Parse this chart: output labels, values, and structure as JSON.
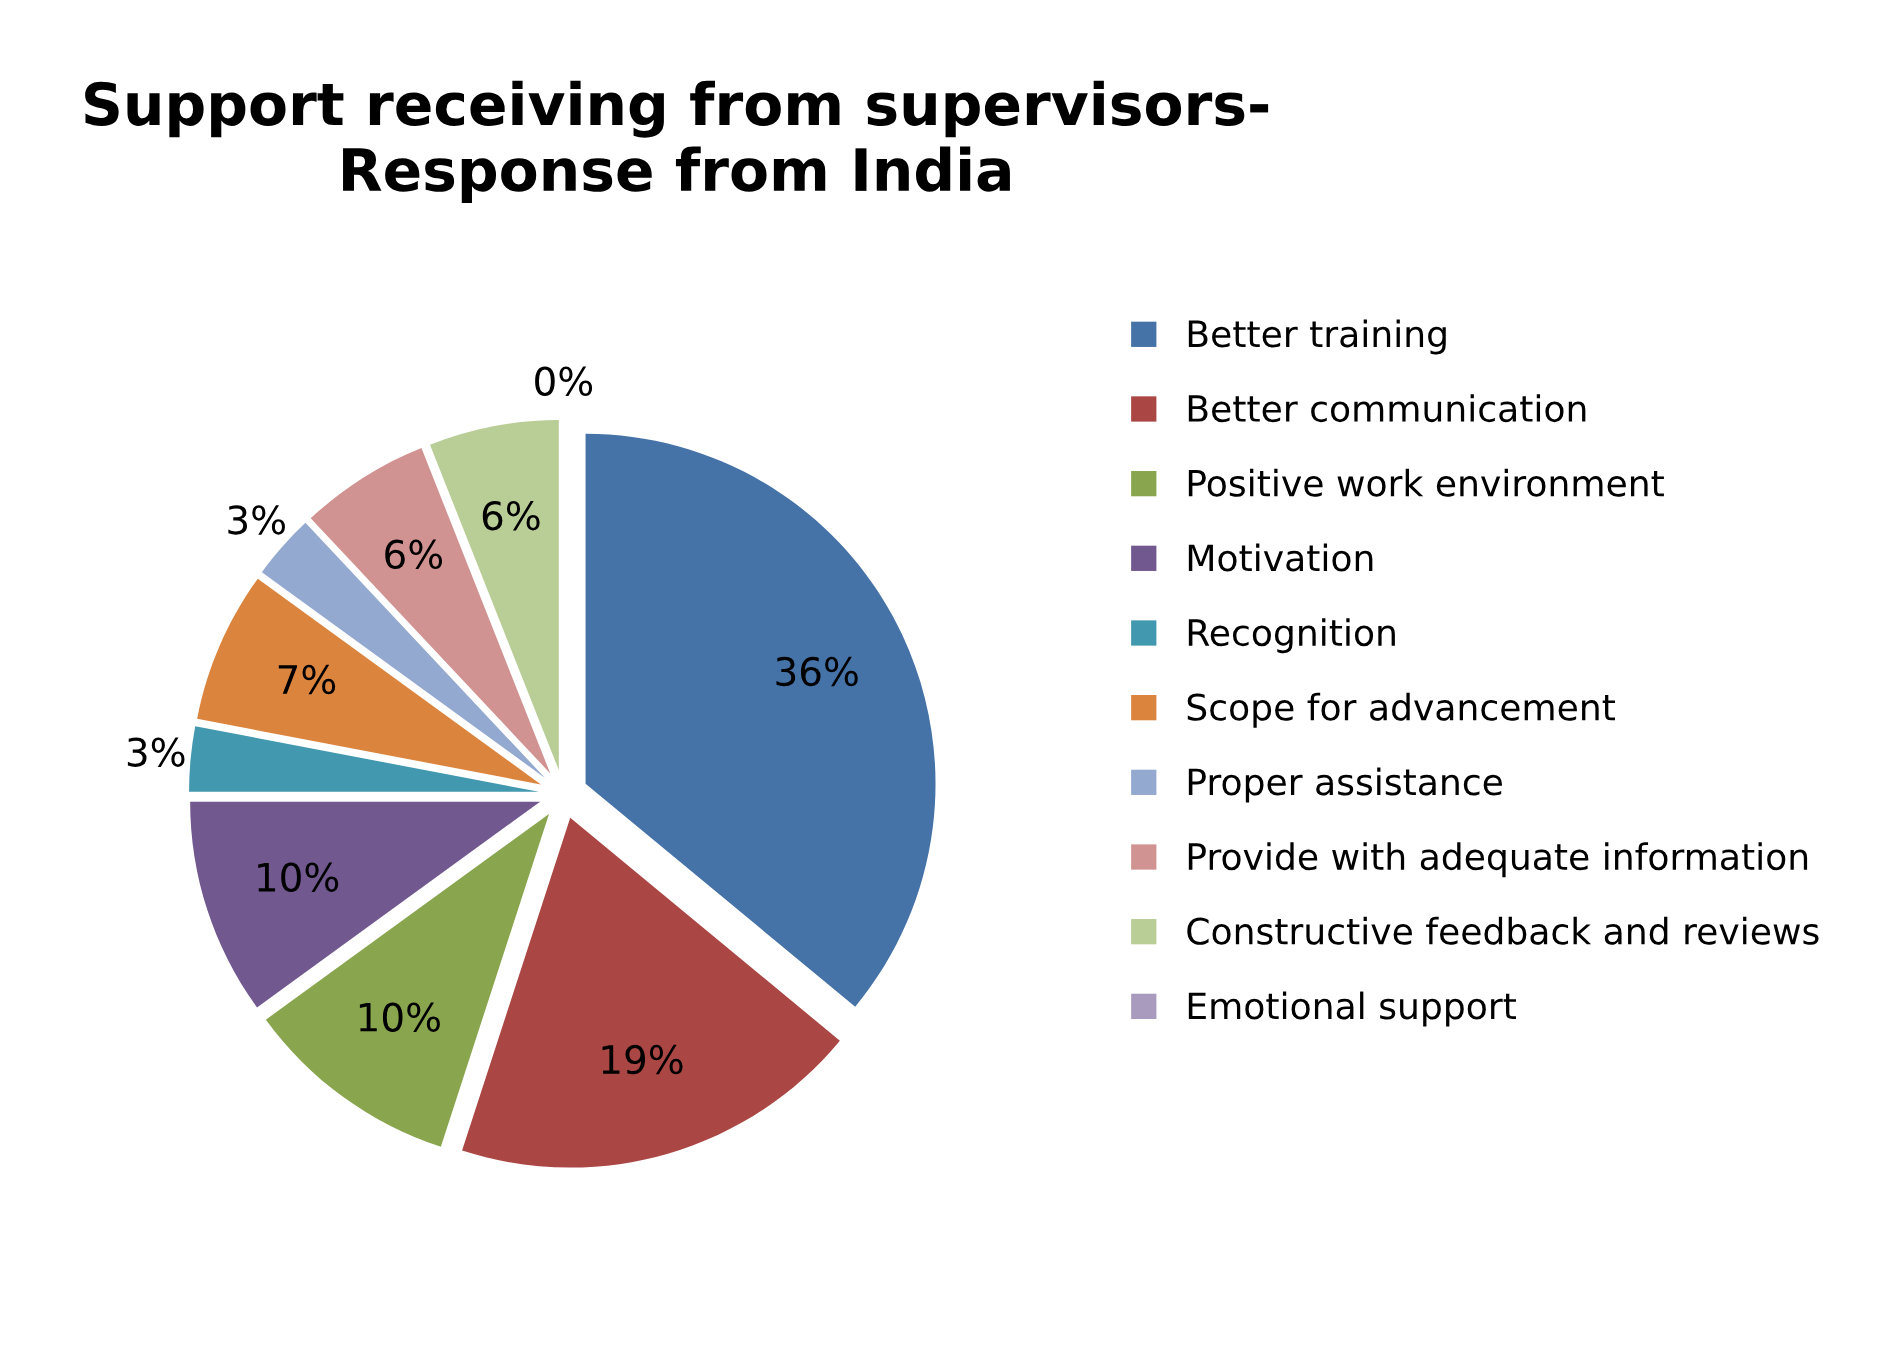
{
  "chart_data": {
    "type": "pie",
    "title": "Support receiving from supervisors- Response from India",
    "categories": [
      "Better training",
      "Better communication",
      "Positive work environment",
      "Motivation",
      "Recognition",
      "Scope for advancement",
      "Proper assistance",
      "Provide with adequate information",
      "Constructive feedback and reviews",
      "Emotional support"
    ],
    "values": [
      36,
      19,
      10,
      10,
      3,
      7,
      3,
      6,
      6,
      0
    ],
    "value_labels": [
      "36%",
      "19%",
      "10%",
      "10%",
      "3%",
      "7%",
      "3%",
      "6%",
      "6%",
      "0%"
    ],
    "colors": [
      "#4572a7",
      "#aa4643",
      "#89a54e",
      "#71588f",
      "#4198af",
      "#db843d",
      "#93a9cf",
      "#d19392",
      "#b9cd96",
      "#a99bbd"
    ],
    "legend": "right"
  }
}
